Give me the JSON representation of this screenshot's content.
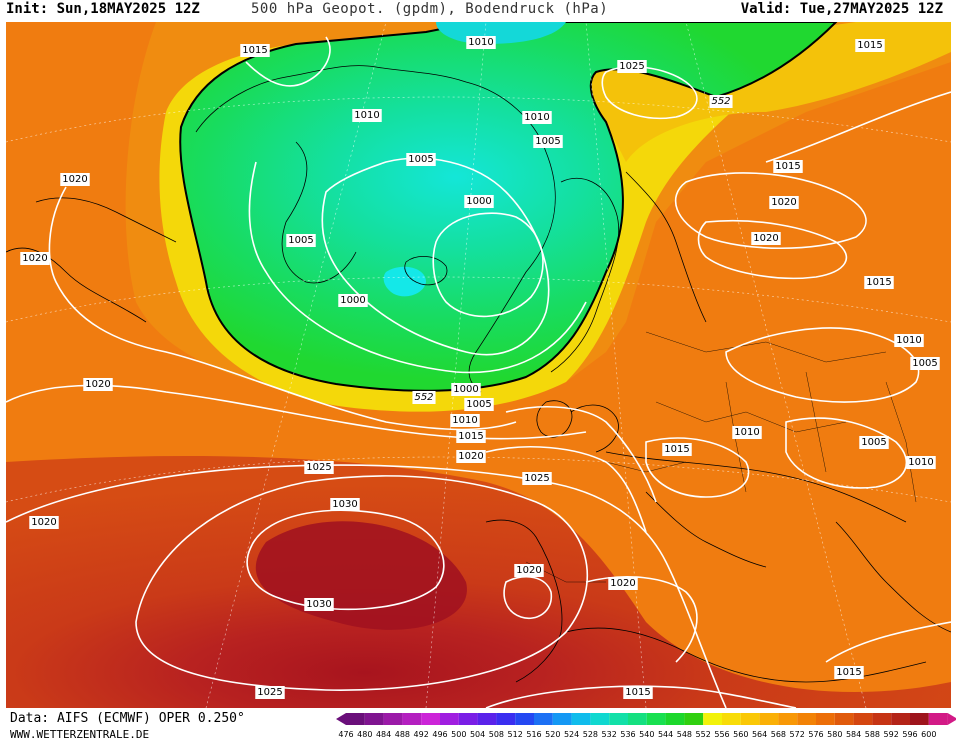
{
  "header": {
    "init": "Init: Sun,18MAY2025 12Z",
    "title": "500 hPa Geopot. (gpdm), Bodendruck (hPa)",
    "valid": "Valid: Tue,27MAY2025 12Z"
  },
  "footer": {
    "source": "Data: AIFS (ECMWF) OPER 0.250°",
    "website": "WWW.WETTERZENTRALE.DE"
  },
  "legend": {
    "values": [
      "476",
      "480",
      "484",
      "488",
      "492",
      "496",
      "500",
      "504",
      "508",
      "512",
      "516",
      "520",
      "524",
      "528",
      "532",
      "536",
      "540",
      "544",
      "548",
      "552",
      "556",
      "560",
      "564",
      "568",
      "572",
      "576",
      "580",
      "584",
      "588",
      "592",
      "596",
      "600"
    ],
    "colors": [
      "#6a0f7a",
      "#7f1490",
      "#9b1aa8",
      "#b41fc0",
      "#cc24d8",
      "#a01ee0",
      "#7a1ee6",
      "#5a22ea",
      "#3a2ef0",
      "#2448f2",
      "#1c70f4",
      "#1498f4",
      "#10bcec",
      "#10d8d0",
      "#12e0a8",
      "#14e080",
      "#18e050",
      "#1cd82c",
      "#30d010",
      "#f2f20a",
      "#f8dc08",
      "#fac806",
      "#fab006",
      "#f89806",
      "#f28206",
      "#ec6e08",
      "#e05a0c",
      "#d44610",
      "#c63414",
      "#b42418",
      "#9e141c",
      "#d21a86"
    ]
  },
  "pressure_labels": [
    {
      "text": "1015"
    },
    {
      "text": "1010"
    },
    {
      "text": "1015"
    },
    {
      "text": "1025"
    },
    {
      "text": "552"
    },
    {
      "text": "1010"
    },
    {
      "text": "1010"
    },
    {
      "text": "1005"
    },
    {
      "text": "1005"
    },
    {
      "text": "1015"
    },
    {
      "text": "1020"
    },
    {
      "text": "1000"
    },
    {
      "text": "1020"
    },
    {
      "text": "1020"
    },
    {
      "text": "1005"
    },
    {
      "text": "1020"
    },
    {
      "text": "1015"
    },
    {
      "text": "1000"
    },
    {
      "text": "1010"
    },
    {
      "text": "1005"
    },
    {
      "text": "1020"
    },
    {
      "text": "1000"
    },
    {
      "text": "552"
    },
    {
      "text": "1005"
    },
    {
      "text": "1010"
    },
    {
      "text": "1010"
    },
    {
      "text": "1015"
    },
    {
      "text": "1015"
    },
    {
      "text": "1005"
    },
    {
      "text": "1010"
    },
    {
      "text": "1020"
    },
    {
      "text": "1025"
    },
    {
      "text": "1025"
    },
    {
      "text": "1020"
    },
    {
      "text": "1030"
    },
    {
      "text": "1030"
    },
    {
      "text": "1020"
    },
    {
      "text": "1020"
    },
    {
      "text": "1015"
    },
    {
      "text": "1025"
    },
    {
      "text": "1015"
    }
  ]
}
